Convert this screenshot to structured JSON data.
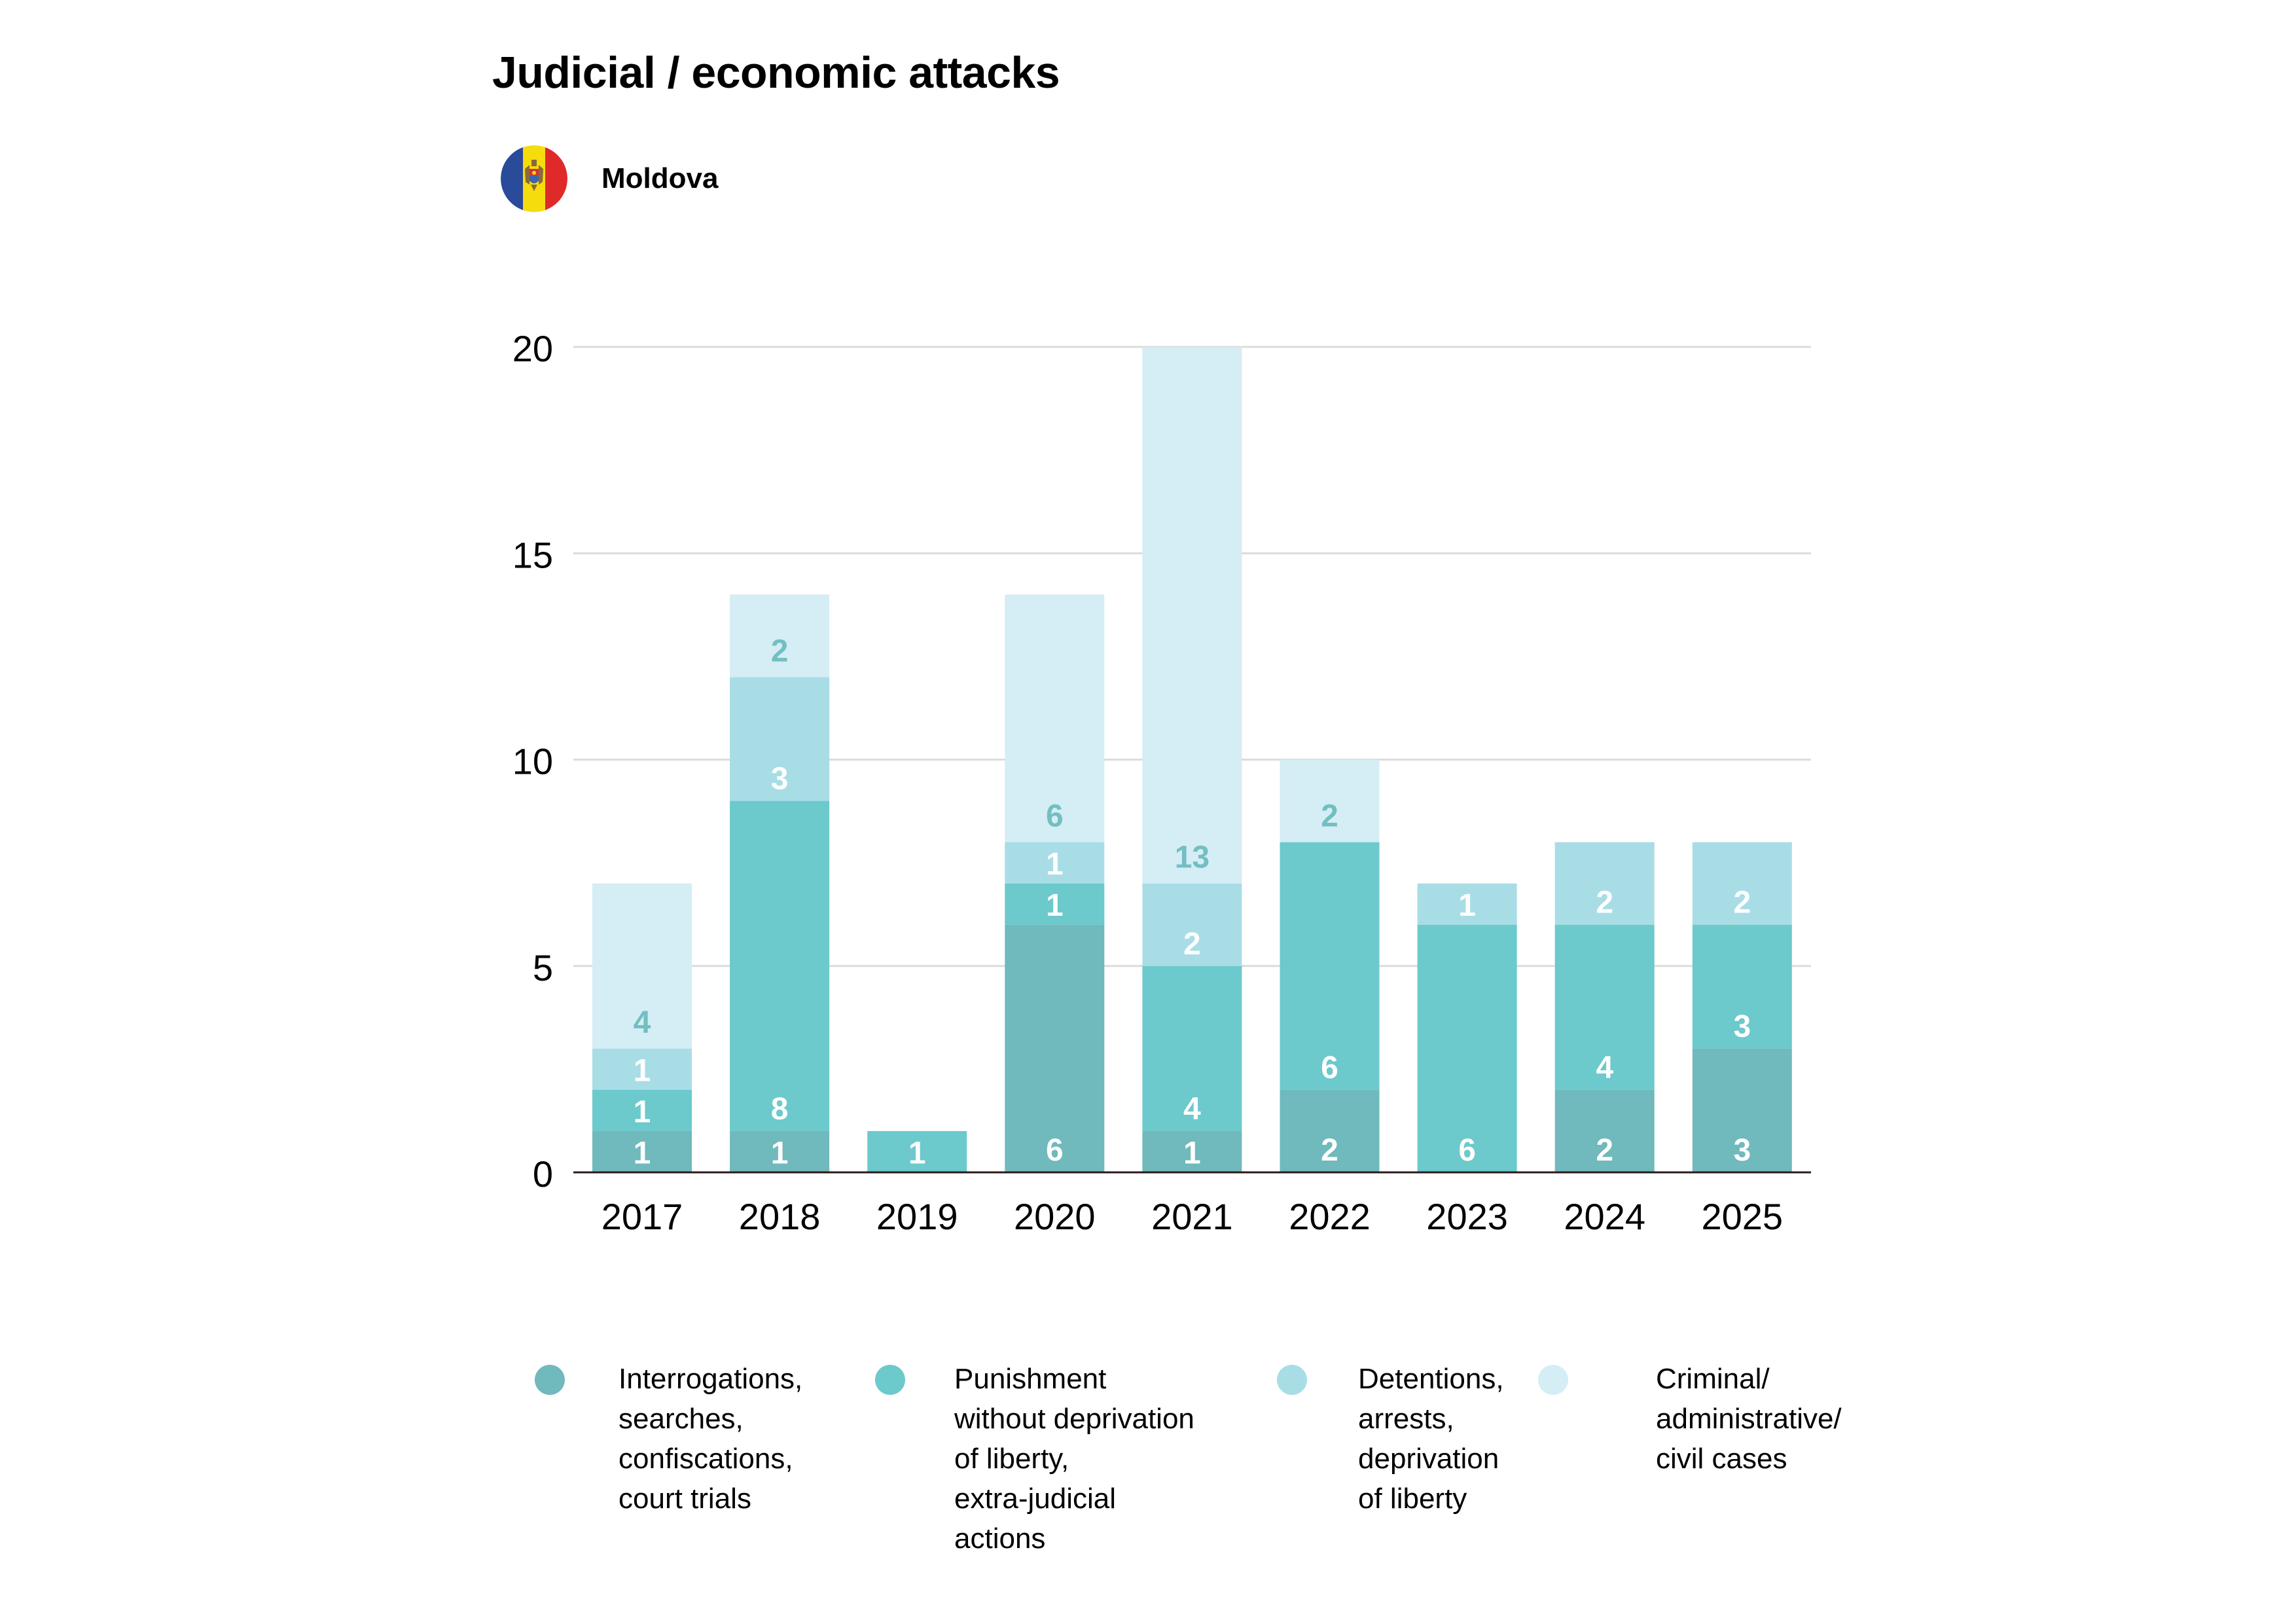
{
  "header": {
    "title": "Judicial / economic attacks",
    "country": "Moldova",
    "flag_icon": "moldova-flag-icon",
    "flag_colors": {
      "blue": "#2A4A9A",
      "yellow": "#F5DC0C",
      "red": "#E02A2A"
    }
  },
  "legend": [
    {
      "label": "Interrogations,\nsearches,\nconfiscations,\ncourt trials",
      "color": "#70B9BC"
    },
    {
      "label": "Punishment\nwithout deprivation\nof liberty,\nextra-judicial\nactions",
      "color": "#6CC9CC"
    },
    {
      "label": "Detentions,\narrests,\ndeprivation\nof liberty",
      "color": "#A8DDE6"
    },
    {
      "label": "Criminal/\nadministrative/\ncivil cases",
      "color": "#D5EDF5"
    }
  ],
  "chart_data": {
    "type": "bar",
    "stacked": true,
    "title": "Judicial / economic attacks",
    "subtitle": "Moldova",
    "xlabel": "",
    "ylabel": "",
    "categories": [
      "2017",
      "2018",
      "2019",
      "2020",
      "2021",
      "2022",
      "2023",
      "2024",
      "2025"
    ],
    "ylim": [
      0,
      20
    ],
    "yticks": [
      0,
      5,
      10,
      15,
      20
    ],
    "grid": true,
    "legend_position": "bottom",
    "series": [
      {
        "name": "Interrogations, searches, confiscations, court trials",
        "color": "#70B9BC",
        "label_color": "#FFFFFF",
        "values": [
          1,
          1,
          0,
          6,
          1,
          2,
          0,
          2,
          3
        ]
      },
      {
        "name": "Punishment without deprivation of liberty, extra-judicial actions",
        "color": "#6CC9CC",
        "label_color": "#FFFFFF",
        "values": [
          1,
          8,
          1,
          1,
          4,
          6,
          6,
          4,
          3
        ]
      },
      {
        "name": "Detentions, arrests, deprivation of liberty",
        "color": "#A8DDE6",
        "label_color": "#FFFFFF",
        "values": [
          1,
          3,
          0,
          1,
          2,
          0,
          1,
          2,
          2
        ]
      },
      {
        "name": "Criminal/administrative/civil cases",
        "color": "#D5EDF5",
        "label_color": "#72BFC2",
        "values": [
          4,
          2,
          0,
          6,
          13,
          2,
          0,
          0,
          0
        ]
      }
    ],
    "totals": [
      7,
      14,
      1,
      14,
      20,
      10,
      7,
      8,
      8
    ]
  }
}
